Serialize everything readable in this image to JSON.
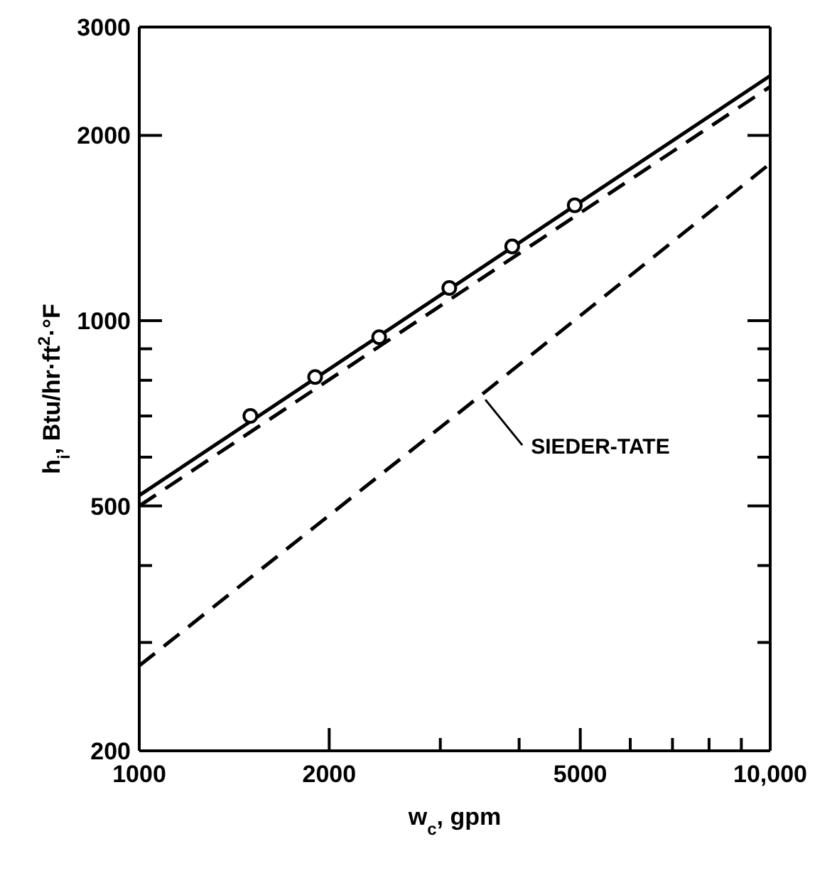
{
  "chart_data": {
    "type": "line",
    "xlabel": "w$_{c}$, gpm",
    "ylabel": "h$_{i}$, Btu/hr·ft$^{2}$·°F",
    "log": "xy",
    "xlim": [
      1000,
      10000
    ],
    "ylim": [
      200,
      3000
    ],
    "xticks": [
      1000,
      2000,
      {
        "value": 3000,
        "label": null
      },
      {
        "value": 4000,
        "label": null
      },
      5000,
      {
        "value": 6000,
        "label": null
      },
      {
        "value": 7000,
        "label": null
      },
      {
        "value": 8000,
        "label": null
      },
      {
        "value": 9000,
        "label": null
      },
      {
        "value": 10000,
        "label": "10,000"
      }
    ],
    "yticks": [
      200,
      {
        "value": 300,
        "label": null
      },
      {
        "value": 400,
        "label": null
      },
      500,
      {
        "value": 600,
        "label": null
      },
      {
        "value": 700,
        "label": null
      },
      {
        "value": 800,
        "label": null
      },
      {
        "value": 900,
        "label": null
      },
      1000,
      2000,
      3000
    ],
    "series": [
      {
        "color": "#000000",
        "line_style": "solid",
        "marker": "none",
        "x": [
          1000,
          10000
        ],
        "values": [
          520,
          2500
        ]
      },
      {
        "color": "#000000",
        "line_style": "dashed",
        "marker": "none",
        "x": [
          1000,
          10000
        ],
        "values": [
          500,
          2400
        ]
      },
      {
        "type": "scatter",
        "color": "#000000",
        "marker": "circle",
        "x": [
          1500,
          1900,
          2400,
          3100,
          3900,
          4900
        ],
        "values": [
          700,
          810,
          940,
          1130,
          1320,
          1540
        ]
      },
      {
        "name": "SIEDER-TATE",
        "color": "#000000",
        "line_style": "dashed",
        "marker": "none",
        "x": [
          1000,
          3500,
          10000
        ],
        "values": [
          275,
          760,
          1800
        ]
      }
    ]
  }
}
